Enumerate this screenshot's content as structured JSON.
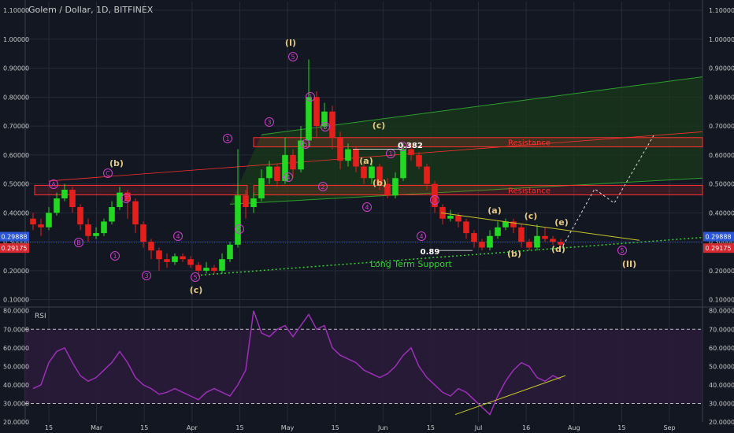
{
  "title": "Golem / Dollar, 1D, BITFINEX",
  "colors": {
    "background": "#131722",
    "grid": "#262b3a",
    "up": "#22d822",
    "down": "#e3201b",
    "resistance": "#ff3030",
    "channel": "#2e9e2e",
    "support_line": "#32d232",
    "rsi_line": "#9d2fb8",
    "rsi_fill": "#2a1b3a",
    "wave_label": "#e6c980",
    "wave_circle": "#cc3fcc",
    "trend": "#c6c62a",
    "price_blue": "#2a55d4",
    "price_red": "#d6282e"
  },
  "chart_data": [
    {
      "type": "candlestick",
      "title": "Golem / Dollar, 1D, BITFINEX",
      "x_ticks": [
        "15",
        "Mar",
        "15",
        "Apr",
        "15",
        "May",
        "15",
        "Jun",
        "15",
        "Jul",
        "16",
        "Aug",
        "15",
        "Sep"
      ],
      "y_ticks": [
        "1.10000",
        "1.00000",
        "0.90000",
        "0.80000",
        "0.70000",
        "0.60000",
        "0.50000",
        "0.40000",
        "0.30000",
        "0.20000",
        "0.10000"
      ],
      "ylim": [
        0.08,
        1.13
      ],
      "last_price_labels": [
        "0.29888",
        "0.29175"
      ],
      "candles": [
        {
          "o": 0.38,
          "c": 0.36,
          "h": 0.4,
          "l": 0.34
        },
        {
          "o": 0.36,
          "c": 0.35,
          "h": 0.38,
          "l": 0.32
        },
        {
          "o": 0.35,
          "c": 0.4,
          "h": 0.42,
          "l": 0.34
        },
        {
          "o": 0.4,
          "c": 0.45,
          "h": 0.47,
          "l": 0.39
        },
        {
          "o": 0.45,
          "c": 0.48,
          "h": 0.5,
          "l": 0.44
        },
        {
          "o": 0.48,
          "c": 0.42,
          "h": 0.49,
          "l": 0.4
        },
        {
          "o": 0.42,
          "c": 0.36,
          "h": 0.43,
          "l": 0.34
        },
        {
          "o": 0.36,
          "c": 0.32,
          "h": 0.38,
          "l": 0.3
        },
        {
          "o": 0.32,
          "c": 0.33,
          "h": 0.35,
          "l": 0.31
        },
        {
          "o": 0.33,
          "c": 0.37,
          "h": 0.38,
          "l": 0.32
        },
        {
          "o": 0.37,
          "c": 0.42,
          "h": 0.44,
          "l": 0.36
        },
        {
          "o": 0.42,
          "c": 0.47,
          "h": 0.49,
          "l": 0.41
        },
        {
          "o": 0.47,
          "c": 0.44,
          "h": 0.48,
          "l": 0.38
        },
        {
          "o": 0.44,
          "c": 0.36,
          "h": 0.45,
          "l": 0.33
        },
        {
          "o": 0.36,
          "c": 0.3,
          "h": 0.37,
          "l": 0.28
        },
        {
          "o": 0.3,
          "c": 0.27,
          "h": 0.31,
          "l": 0.24
        },
        {
          "o": 0.27,
          "c": 0.24,
          "h": 0.28,
          "l": 0.2
        },
        {
          "o": 0.24,
          "c": 0.23,
          "h": 0.26,
          "l": 0.21
        },
        {
          "o": 0.23,
          "c": 0.25,
          "h": 0.26,
          "l": 0.22
        },
        {
          "o": 0.25,
          "c": 0.24,
          "h": 0.26,
          "l": 0.23
        },
        {
          "o": 0.24,
          "c": 0.22,
          "h": 0.25,
          "l": 0.21
        },
        {
          "o": 0.22,
          "c": 0.2,
          "h": 0.23,
          "l": 0.18
        },
        {
          "o": 0.2,
          "c": 0.21,
          "h": 0.23,
          "l": 0.19
        },
        {
          "o": 0.21,
          "c": 0.2,
          "h": 0.22,
          "l": 0.19
        },
        {
          "o": 0.2,
          "c": 0.24,
          "h": 0.26,
          "l": 0.19
        },
        {
          "o": 0.24,
          "c": 0.29,
          "h": 0.3,
          "l": 0.23
        },
        {
          "o": 0.29,
          "c": 0.46,
          "h": 0.62,
          "l": 0.28
        },
        {
          "o": 0.46,
          "c": 0.42,
          "h": 0.48,
          "l": 0.38
        },
        {
          "o": 0.42,
          "c": 0.45,
          "h": 0.47,
          "l": 0.4
        },
        {
          "o": 0.45,
          "c": 0.52,
          "h": 0.55,
          "l": 0.44
        },
        {
          "o": 0.52,
          "c": 0.56,
          "h": 0.58,
          "l": 0.5
        },
        {
          "o": 0.56,
          "c": 0.51,
          "h": 0.57,
          "l": 0.49
        },
        {
          "o": 0.51,
          "c": 0.6,
          "h": 0.66,
          "l": 0.5
        },
        {
          "o": 0.6,
          "c": 0.55,
          "h": 0.62,
          "l": 0.52
        },
        {
          "o": 0.55,
          "c": 0.65,
          "h": 0.7,
          "l": 0.54
        },
        {
          "o": 0.65,
          "c": 0.8,
          "h": 0.93,
          "l": 0.63
        },
        {
          "o": 0.8,
          "c": 0.7,
          "h": 0.82,
          "l": 0.66
        },
        {
          "o": 0.7,
          "c": 0.75,
          "h": 0.78,
          "l": 0.69
        },
        {
          "o": 0.75,
          "c": 0.66,
          "h": 0.77,
          "l": 0.62
        },
        {
          "o": 0.66,
          "c": 0.58,
          "h": 0.68,
          "l": 0.55
        },
        {
          "o": 0.58,
          "c": 0.62,
          "h": 0.64,
          "l": 0.56
        },
        {
          "o": 0.62,
          "c": 0.56,
          "h": 0.63,
          "l": 0.54
        },
        {
          "o": 0.56,
          "c": 0.52,
          "h": 0.58,
          "l": 0.5
        },
        {
          "o": 0.52,
          "c": 0.56,
          "h": 0.57,
          "l": 0.5
        },
        {
          "o": 0.56,
          "c": 0.5,
          "h": 0.57,
          "l": 0.48
        },
        {
          "o": 0.5,
          "c": 0.46,
          "h": 0.52,
          "l": 0.45
        },
        {
          "o": 0.46,
          "c": 0.52,
          "h": 0.54,
          "l": 0.45
        },
        {
          "o": 0.52,
          "c": 0.62,
          "h": 0.64,
          "l": 0.51
        },
        {
          "o": 0.62,
          "c": 0.6,
          "h": 0.64,
          "l": 0.58
        },
        {
          "o": 0.6,
          "c": 0.56,
          "h": 0.61,
          "l": 0.55
        },
        {
          "o": 0.56,
          "c": 0.5,
          "h": 0.57,
          "l": 0.48
        },
        {
          "o": 0.5,
          "c": 0.42,
          "h": 0.51,
          "l": 0.4
        },
        {
          "o": 0.42,
          "c": 0.38,
          "h": 0.43,
          "l": 0.36
        },
        {
          "o": 0.38,
          "c": 0.39,
          "h": 0.41,
          "l": 0.37
        },
        {
          "o": 0.39,
          "c": 0.37,
          "h": 0.4,
          "l": 0.35
        },
        {
          "o": 0.37,
          "c": 0.33,
          "h": 0.38,
          "l": 0.31
        },
        {
          "o": 0.33,
          "c": 0.3,
          "h": 0.34,
          "l": 0.28
        },
        {
          "o": 0.3,
          "c": 0.28,
          "h": 0.31,
          "l": 0.27
        },
        {
          "o": 0.28,
          "c": 0.32,
          "h": 0.34,
          "l": 0.27
        },
        {
          "o": 0.32,
          "c": 0.35,
          "h": 0.37,
          "l": 0.31
        },
        {
          "o": 0.35,
          "c": 0.37,
          "h": 0.38,
          "l": 0.34
        },
        {
          "o": 0.37,
          "c": 0.35,
          "h": 0.38,
          "l": 0.33
        },
        {
          "o": 0.35,
          "c": 0.3,
          "h": 0.36,
          "l": 0.28
        },
        {
          "o": 0.3,
          "c": 0.28,
          "h": 0.31,
          "l": 0.27
        },
        {
          "o": 0.28,
          "c": 0.32,
          "h": 0.36,
          "l": 0.27
        },
        {
          "o": 0.32,
          "c": 0.31,
          "h": 0.35,
          "l": 0.3
        },
        {
          "o": 0.31,
          "c": 0.3,
          "h": 0.32,
          "l": 0.29
        },
        {
          "o": 0.3,
          "c": 0.29,
          "h": 0.31,
          "l": 0.28
        }
      ],
      "zones": [
        {
          "label": "Resistance",
          "top": 0.66,
          "bottom": 0.628
        },
        {
          "label": "Resistance",
          "top": 0.495,
          "bottom": 0.462
        }
      ],
      "annotations": [
        {
          "text": "(I)",
          "kind": "wave",
          "x": 0.2,
          "y": 0.96
        },
        {
          "text": "(II)",
          "kind": "wave",
          "x": 0.86,
          "y": 0.1
        },
        {
          "text": "(a)",
          "kind": "wave",
          "x": 0.46,
          "y": 0.51
        },
        {
          "text": "(b)",
          "kind": "wave",
          "x": 0.47,
          "y": 0.36
        },
        {
          "text": "(c)",
          "kind": "wave",
          "x": 0.46,
          "y": 0.79
        },
        {
          "text": "(b)",
          "kind": "wave",
          "x": 0.12,
          "y": 0.73
        },
        {
          "text": "(c)",
          "kind": "wave",
          "x": 0.24,
          "y": 0.12
        },
        {
          "text": "(a)",
          "kind": "wave",
          "x": 0.65,
          "y": 0.42
        },
        {
          "text": "(b)",
          "kind": "wave",
          "x": 0.68,
          "y": 0.08
        },
        {
          "text": "(c)",
          "kind": "wave",
          "x": 0.71,
          "y": 0.36
        },
        {
          "text": "(d)",
          "kind": "wave",
          "x": 0.75,
          "y": 0.1
        },
        {
          "text": "(e)",
          "kind": "wave",
          "x": 0.75,
          "y": 0.36
        },
        {
          "text": "0.382",
          "kind": "fib",
          "x": 0.53,
          "y": 0.58
        },
        {
          "text": "0.89",
          "kind": "fib",
          "x": 0.56,
          "y": 0.06
        },
        {
          "text": "Long Term Support",
          "kind": "support",
          "x": 0.52,
          "y": 0.01
        }
      ],
      "wave_circles": [
        "A",
        "B",
        "C",
        "1",
        "2",
        "3",
        "4",
        "5",
        "1",
        "2",
        "3",
        "4",
        "5",
        "1",
        "2",
        "3",
        "4",
        "5",
        "1",
        "2",
        "3",
        "4",
        "5"
      ]
    },
    {
      "type": "line",
      "title": "RSI",
      "y_ticks": [
        "80.0000",
        "70.0000",
        "60.0000",
        "50.0000",
        "40.0000",
        "30.0000",
        "20.0000"
      ],
      "ylim": [
        20,
        82
      ],
      "levels": [
        70,
        30
      ],
      "values": [
        38,
        40,
        52,
        58,
        60,
        52,
        45,
        42,
        44,
        48,
        52,
        58,
        52,
        44,
        40,
        38,
        35,
        36,
        38,
        36,
        34,
        32,
        36,
        38,
        36,
        34,
        40,
        48,
        80,
        68,
        66,
        70,
        72,
        66,
        72,
        78,
        70,
        72,
        60,
        56,
        54,
        52,
        48,
        46,
        44,
        46,
        50,
        56,
        60,
        50,
        44,
        40,
        36,
        34,
        38,
        36,
        32,
        28,
        24,
        34,
        42,
        48,
        52,
        50,
        44,
        42,
        45,
        43
      ]
    }
  ]
}
